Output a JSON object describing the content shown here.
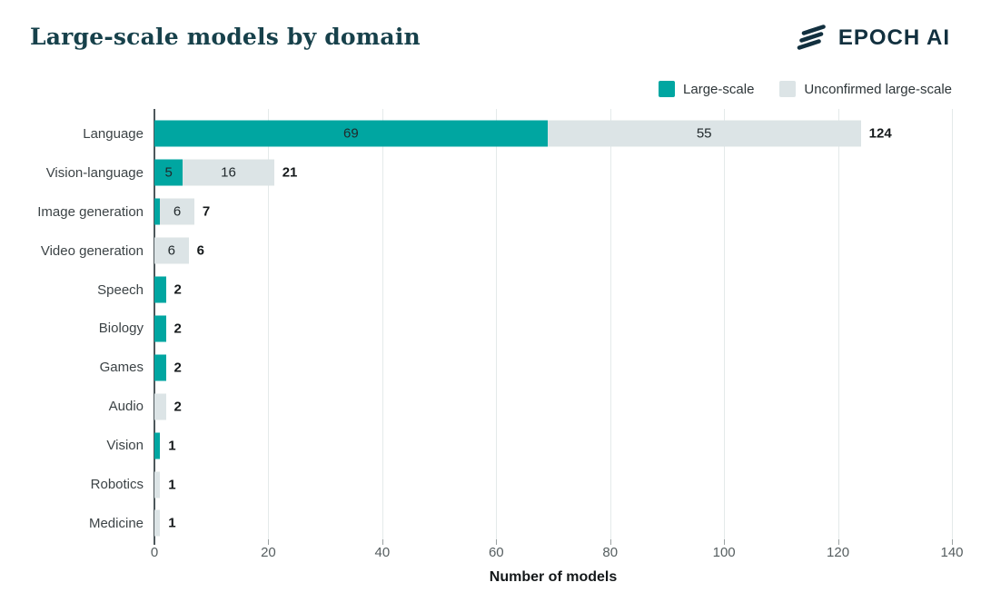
{
  "header": {
    "title": "Large-scale models by domain",
    "brand": "EPOCH AI"
  },
  "colors": {
    "large_scale": "#00a6a1",
    "unconfirmed": "#dce4e6",
    "title_text": "#17414b",
    "brand_text": "#12303f"
  },
  "chart_data": {
    "type": "bar",
    "orientation": "horizontal",
    "stacked": true,
    "title": "Large-scale models by domain",
    "xlabel": "Number of models",
    "ylabel": "",
    "xlim": [
      0,
      140
    ],
    "xticks": [
      0,
      20,
      40,
      60,
      80,
      100,
      120,
      140
    ],
    "grid": "vertical",
    "legend": {
      "position": "top-right",
      "entries": [
        {
          "label": "Large-scale",
          "color": "#00a6a1"
        },
        {
          "label": "Unconfirmed large-scale",
          "color": "#dce4e6"
        }
      ]
    },
    "categories": [
      "Language",
      "Vision-language",
      "Image generation",
      "Video generation",
      "Speech",
      "Biology",
      "Games",
      "Audio",
      "Vision",
      "Robotics",
      "Medicine"
    ],
    "series": [
      {
        "name": "Large-scale",
        "color": "#00a6a1",
        "values": [
          69,
          5,
          1,
          0,
          2,
          2,
          2,
          0,
          1,
          0,
          0
        ]
      },
      {
        "name": "Unconfirmed large-scale",
        "color": "#dce4e6",
        "values": [
          55,
          16,
          6,
          6,
          0,
          0,
          0,
          2,
          0,
          1,
          1
        ]
      }
    ],
    "segment_labels": [
      [
        "69",
        "55"
      ],
      [
        "5",
        "16"
      ],
      [
        "",
        "6"
      ],
      [
        "",
        "6"
      ],
      [
        "",
        ""
      ],
      [
        "",
        ""
      ],
      [
        "",
        ""
      ],
      [
        "",
        ""
      ],
      [
        "",
        ""
      ],
      [
        "",
        ""
      ],
      [
        "",
        ""
      ]
    ],
    "totals": [
      "124",
      "21",
      "7",
      "6",
      "2",
      "2",
      "2",
      "2",
      "1",
      "1",
      "1"
    ]
  }
}
